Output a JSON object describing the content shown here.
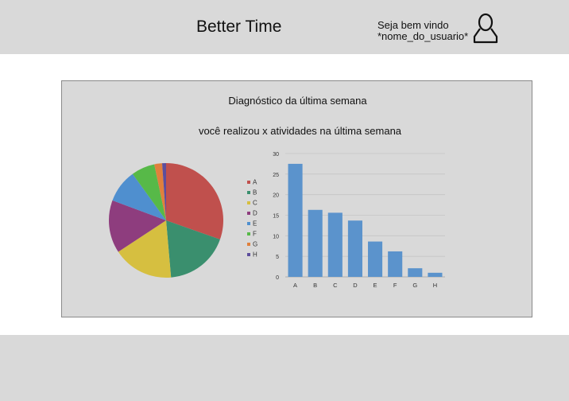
{
  "header": {
    "title": "Better Time",
    "welcome_line1": "Seja bem vindo",
    "welcome_line2": "*nome_do_usuario*",
    "avatar_icon": "user-outline-icon"
  },
  "panel": {
    "title": "Diagnóstico da última semana",
    "subtitle": "você realizou x atividades na última semana"
  },
  "chart_data": [
    {
      "type": "pie",
      "categories": [
        "A",
        "B",
        "C",
        "D",
        "E",
        "F",
        "G",
        "H"
      ],
      "values": [
        27.5,
        16.5,
        15.5,
        13.5,
        8.5,
        6.0,
        2.0,
        1.0
      ],
      "colors": [
        "#c0504d",
        "#3a8f6e",
        "#d6bf40",
        "#8e3d7e",
        "#4f8fcf",
        "#57b948",
        "#e0803c",
        "#5d4e9c"
      ],
      "legend": "right"
    },
    {
      "type": "bar",
      "categories": [
        "A",
        "B",
        "C",
        "D",
        "E",
        "F",
        "G",
        "H"
      ],
      "values": [
        27.5,
        16.3,
        15.6,
        13.7,
        8.6,
        6.2,
        2.1,
        1.0
      ],
      "ylim": [
        0,
        30
      ],
      "yticks": [
        0,
        5,
        10,
        15,
        20,
        25,
        30
      ],
      "grid": true,
      "bar_color": "#5b93cc"
    }
  ]
}
